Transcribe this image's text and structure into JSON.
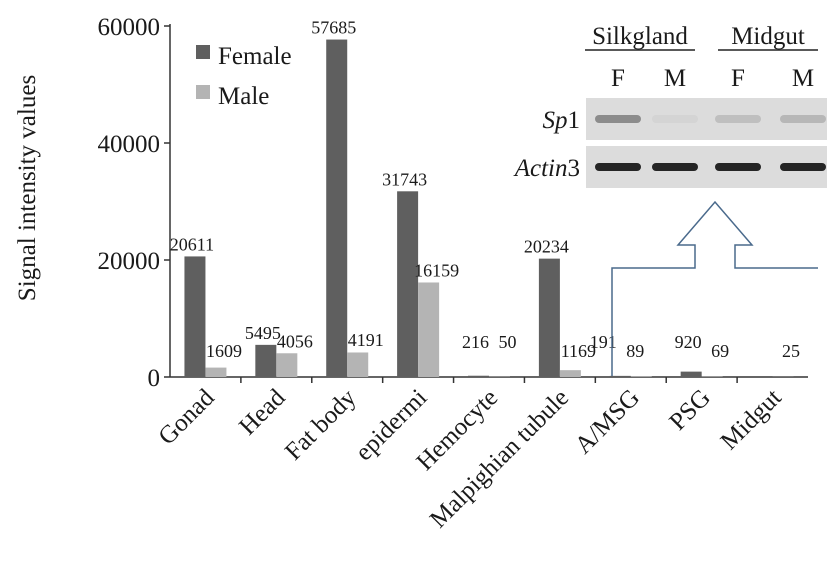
{
  "chart_data": {
    "type": "bar",
    "ylabel": "Signal intensity values",
    "ylim": [
      0,
      60000
    ],
    "yticks": [
      0,
      20000,
      40000,
      60000
    ],
    "grid": false,
    "legend_position": "top-left",
    "categories": [
      "Gonad",
      "Head",
      "Fat body",
      "epidermi",
      "Hemocyte",
      "Malpighian tubule",
      "A/MSG",
      "PSG",
      "Midgut"
    ],
    "series": [
      {
        "name": "Female",
        "color": "#5f5f5f",
        "values": [
          20611,
          5495,
          57685,
          31743,
          216,
          20234,
          191,
          920,
          0
        ],
        "labels": [
          "20611",
          "5495",
          "57685",
          "31743",
          "216",
          "20234",
          "191",
          "920",
          ""
        ]
      },
      {
        "name": "Male",
        "color": "#b4b4b4",
        "values": [
          1609,
          4056,
          4191,
          16159,
          50,
          1169,
          89,
          69,
          25
        ],
        "labels": [
          "1609",
          "4056",
          "4191",
          "16159",
          "50",
          "1169",
          "89",
          "69",
          "25"
        ]
      }
    ]
  },
  "inset": {
    "groups": [
      "Silkgland",
      "Midgut"
    ],
    "lanes": [
      "F",
      "M",
      "F",
      "M"
    ],
    "rows": [
      {
        "gene": "Sp",
        "suffix": "1",
        "band_intensity": [
          0.55,
          0.05,
          0.2,
          0.25
        ]
      },
      {
        "gene": "Actin",
        "suffix": "3",
        "band_intensity": [
          1,
          1,
          1,
          1
        ]
      }
    ],
    "callout_color": "#4a6a8c"
  }
}
